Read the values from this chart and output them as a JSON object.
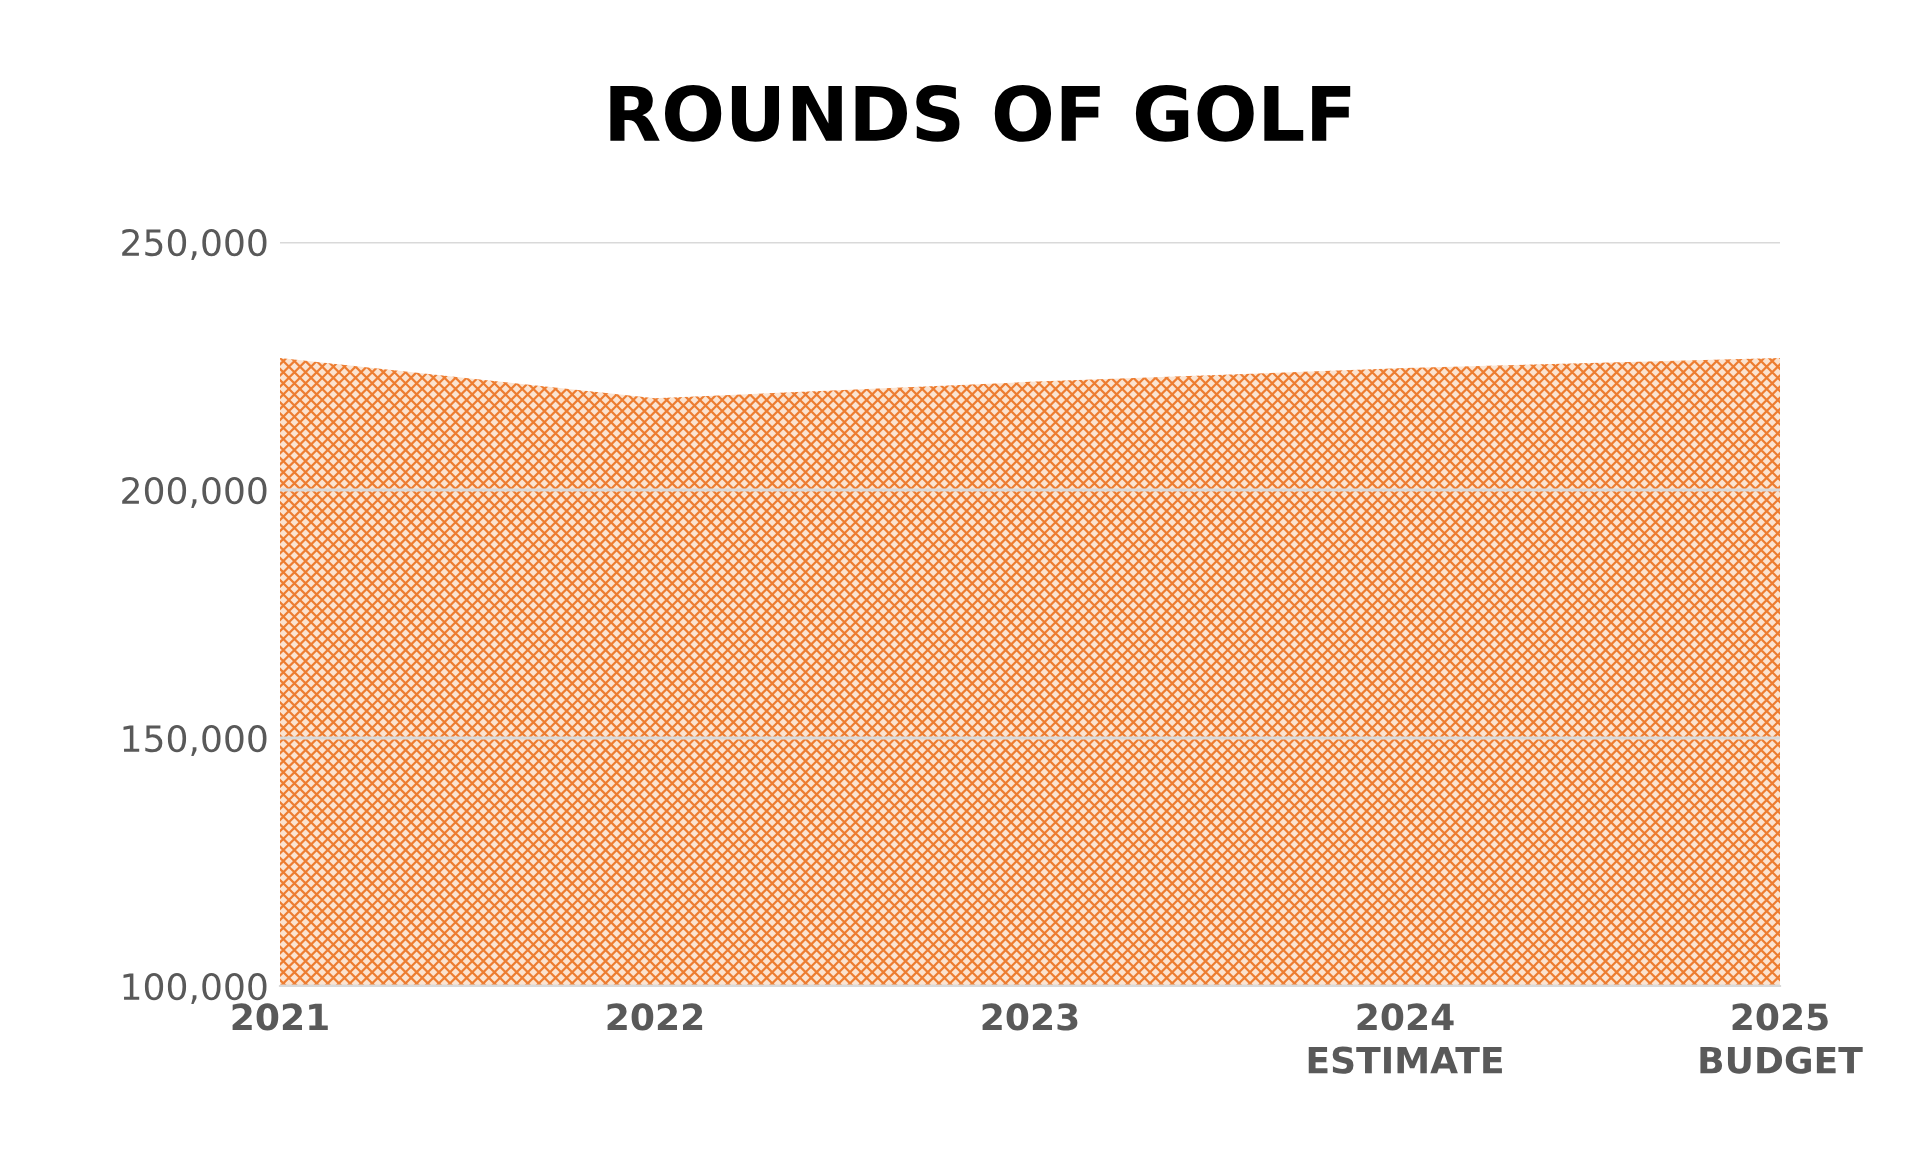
{
  "chart_data": {
    "type": "area",
    "title": "ROUNDS OF GOLF",
    "categories": [
      "2021",
      "2022",
      "2023",
      "2024\nESTIMATE",
      "2025\nBUDGET"
    ],
    "series": [
      {
        "color": "#ed7d31",
        "values": [
          226600,
          218500,
          221800,
          224600,
          226600
        ]
      }
    ],
    "ylim": [
      100000,
      250000
    ],
    "yticks": [
      {
        "value": 100000,
        "label": "100,000"
      },
      {
        "value": 150000,
        "label": "150,000"
      },
      {
        "value": 200000,
        "label": "200,000"
      },
      {
        "value": 250000,
        "label": "250,000"
      }
    ],
    "grid": "y",
    "legend": false
  }
}
